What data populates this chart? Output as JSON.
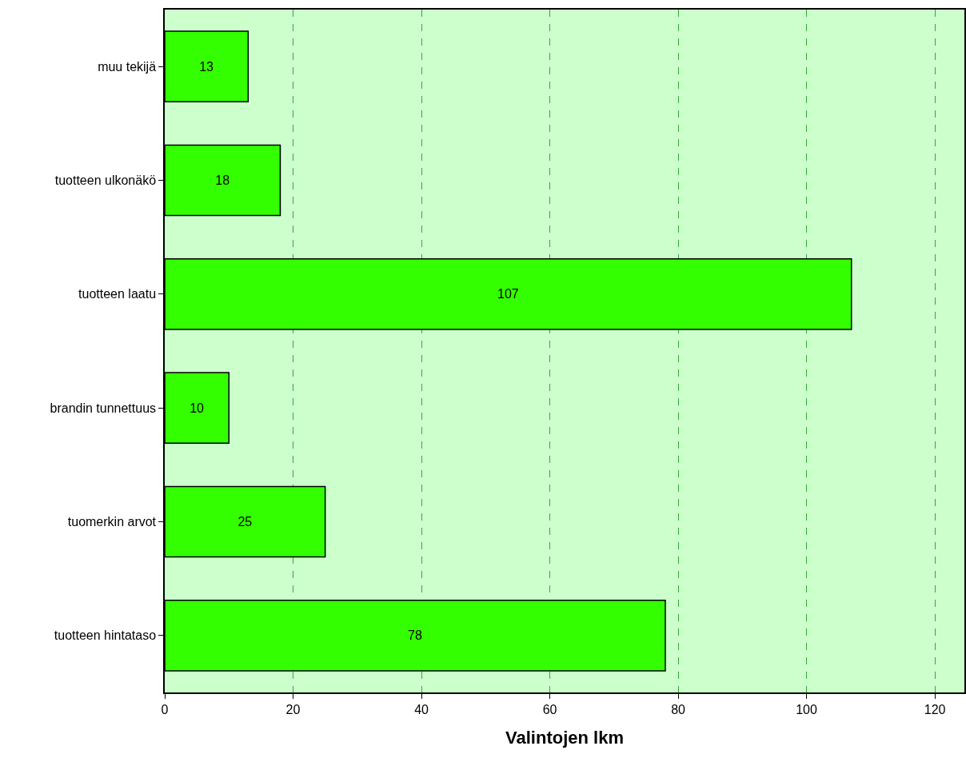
{
  "chart_data": {
    "type": "bar",
    "orientation": "horizontal",
    "xlabel": "Valintojen lkm",
    "categories": [
      "muu tekijä",
      "tuotteen ulkonäkö",
      "tuotteen laatu",
      "brandin tunnettuus",
      "tuomerkin arvot",
      "tuotteen hintataso"
    ],
    "values": [
      13,
      18,
      107,
      10,
      25,
      78
    ],
    "color": "#33ff00",
    "xlim": [
      0,
      124.6
    ],
    "xticks": [
      0,
      20,
      40,
      60,
      80,
      100,
      120
    ],
    "grid": "x",
    "data_labels": true
  }
}
